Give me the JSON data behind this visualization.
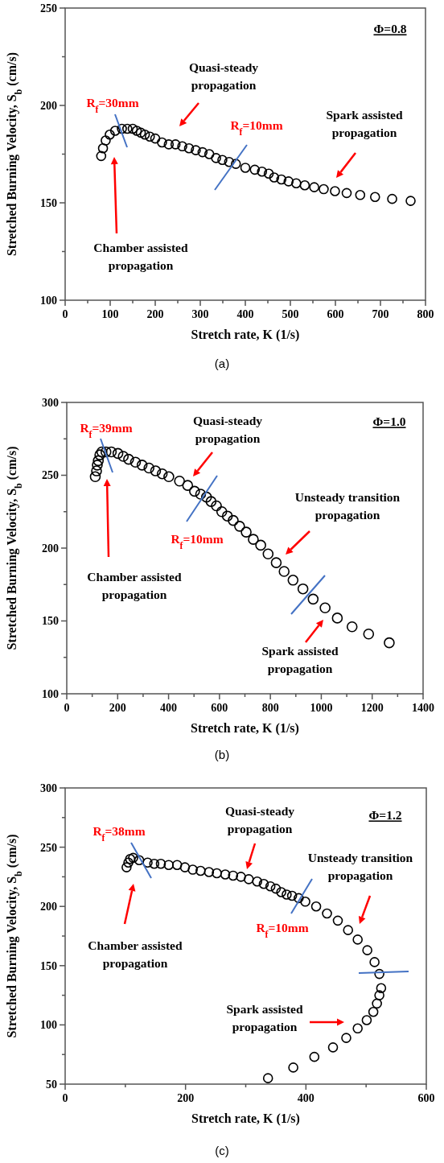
{
  "chart_data": [
    {
      "type": "scatter",
      "xlabel": "Stretch rate, K (1/s)",
      "ylabel": "Stretched Burning Velocity, S$_{b}$ (cm/s)",
      "color": "#000000",
      "marker": "circle",
      "annotations": [
        "Φ=0.8",
        "Quasi-steady\npropagation",
        "Spark assisted\npropagation",
        "Chamber assisted\npropagation",
        "R$_{f}$=30mm",
        "R$_{f}$=10mm",
        "(a)"
      ],
      "xlim": [
        0,
        800
      ],
      "xticks": [
        0,
        {
          "value": 50,
          "label": null
        },
        100,
        {
          "value": 150,
          "label": null
        },
        200,
        {
          "value": 250,
          "label": null
        },
        300,
        {
          "value": 350,
          "label": null
        },
        400,
        {
          "value": 450,
          "label": null
        },
        500,
        {
          "value": 550,
          "label": null
        },
        600,
        {
          "value": 650,
          "label": null
        },
        700,
        {
          "value": 750,
          "label": null
        },
        800
      ],
      "ylim": [
        100,
        250
      ],
      "yticks": [
        100,
        {
          "value": 125,
          "label": null
        },
        150,
        {
          "value": 175,
          "label": null
        },
        200,
        {
          "value": 225,
          "label": null
        },
        250
      ],
      "x": [
        80,
        84,
        90,
        99,
        111,
        126,
        138,
        150,
        159,
        168,
        177,
        188,
        200,
        215,
        230,
        245,
        260,
        275,
        290,
        305,
        320,
        335,
        349,
        364,
        379,
        400,
        421,
        437,
        452,
        464,
        480,
        496,
        513,
        532,
        553,
        574,
        599,
        625,
        655,
        688,
        726,
        767
      ],
      "values": [
        174,
        178,
        182,
        185,
        187,
        188,
        188,
        188,
        187,
        186,
        185,
        184,
        183,
        181,
        180,
        180,
        179,
        178,
        177,
        176,
        175,
        173,
        172,
        171,
        170,
        168,
        167,
        166,
        165,
        163,
        162,
        161,
        160,
        159,
        158,
        157,
        156,
        155,
        154,
        153,
        152,
        151
      ]
    },
    {
      "type": "scatter",
      "xlabel": "Stretch rate, K (1/s)",
      "ylabel": "Stretched Burning Velocity, S$_{b}$ (cm/s)",
      "color": "#000000",
      "marker": "circle",
      "annotations": [
        "Φ=1.0",
        "Quasi-steady\npropagation",
        "Unsteady transition\npropagation",
        "Spark assisted\npropagation",
        "Chamber assisted\npropagation",
        "R$_{f}$=39mm",
        "R$_{f}$=10mm",
        "(b)"
      ],
      "xlim": [
        0,
        1400
      ],
      "xticks": [
        0,
        {
          "value": 100,
          "label": null
        },
        200,
        {
          "value": 300,
          "label": null
        },
        400,
        {
          "value": 500,
          "label": null
        },
        600,
        {
          "value": 700,
          "label": null
        },
        800,
        {
          "value": 900,
          "label": null
        },
        1000,
        {
          "value": 1100,
          "label": null
        },
        1200,
        {
          "value": 1300,
          "label": null
        },
        1400
      ],
      "ylim": [
        100,
        300
      ],
      "yticks": [
        100,
        {
          "value": 125,
          "label": null
        },
        150,
        {
          "value": 175,
          "label": null
        },
        200,
        {
          "value": 225,
          "label": null
        },
        250,
        {
          "value": 275,
          "label": null
        },
        300
      ],
      "x": [
        112,
        117,
        120,
        124,
        130,
        138,
        154,
        175,
        201,
        222,
        243,
        270,
        296,
        323,
        349,
        375,
        401,
        443,
        475,
        502,
        526,
        549,
        567,
        588,
        609,
        631,
        654,
        679,
        705,
        733,
        762,
        791,
        823,
        854,
        889,
        928,
        968,
        1015,
        1063,
        1121,
        1186,
        1267
      ],
      "values": [
        249,
        253,
        257,
        260,
        264,
        266,
        266,
        266,
        265,
        263,
        261,
        259,
        257,
        255,
        253,
        251,
        249,
        246,
        243,
        239,
        237,
        235,
        232,
        229,
        225,
        222,
        219,
        215,
        211,
        206,
        202,
        196,
        190,
        184,
        178,
        172,
        165,
        159,
        152,
        146,
        141,
        135
      ]
    },
    {
      "type": "scatter",
      "xlabel": "Stretch rate, K (1/s)",
      "ylabel": "Stretched Burning Velocity, S$_{b}$ (cm/s)",
      "color": "#000000",
      "marker": "circle",
      "annotations": [
        "Φ=1.2",
        "Quasi-steady\npropagation",
        "Unsteady transition\npropagation",
        "Spark assisted\npropagation",
        "Chamber assisted\npropagation",
        "R$_{f}$=38mm",
        "R$_{f}$=10mm",
        "(c)"
      ],
      "xlim": [
        0,
        600
      ],
      "xticks": [
        0,
        {
          "value": 100,
          "label": null
        },
        200,
        {
          "value": 300,
          "label": null
        },
        400,
        {
          "value": 500,
          "label": null
        },
        600
      ],
      "ylim": [
        50,
        300
      ],
      "yticks": [
        50,
        {
          "value": 75,
          "label": null
        },
        100,
        {
          "value": 125,
          "label": null
        },
        150,
        {
          "value": 175,
          "label": null
        },
        200,
        {
          "value": 225,
          "label": null
        },
        250,
        {
          "value": 275,
          "label": null
        },
        300
      ],
      "x": [
        102,
        105,
        108,
        113,
        123,
        137,
        148,
        159,
        172,
        186,
        199,
        212,
        225,
        239,
        252,
        266,
        279,
        292,
        305,
        319,
        330,
        341,
        350,
        359,
        368,
        377,
        388,
        399,
        417,
        435,
        453,
        470,
        486,
        502,
        514,
        522,
        525,
        522,
        518,
        512,
        501,
        486,
        467,
        445,
        414,
        379,
        337
      ],
      "values": [
        233,
        237,
        240,
        241,
        239,
        237,
        236,
        236,
        235,
        235,
        233,
        231,
        230,
        229,
        228,
        227,
        226,
        225,
        223,
        221,
        219,
        217,
        215,
        212,
        210,
        209,
        207,
        204,
        200,
        194,
        188,
        180,
        172,
        163,
        153,
        143,
        131,
        125,
        118,
        111,
        104,
        97,
        89,
        81,
        73,
        64,
        55
      ]
    }
  ]
}
